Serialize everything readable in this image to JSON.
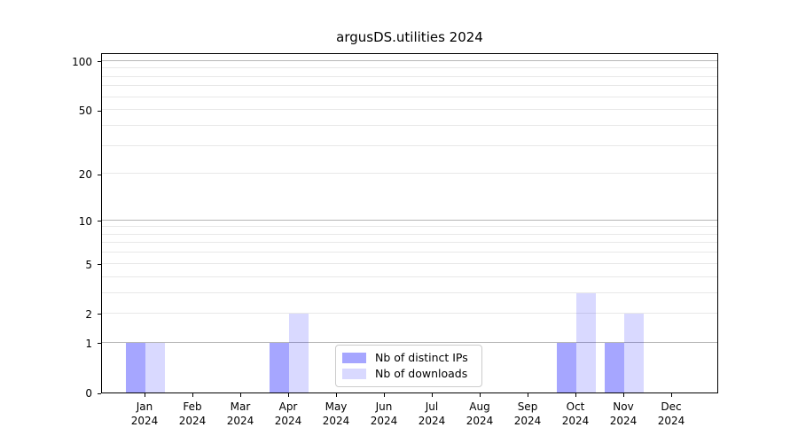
{
  "figure": {
    "background": "#ffffff",
    "text_color": "#000000",
    "spine_color": "#000000",
    "grid_major_color": "#b6b6b6",
    "grid_minor_color": "#e8e8e8",
    "legend_border_color": "#cccccc"
  },
  "chart_data": {
    "type": "bar",
    "title": "argusDS.utilities 2024",
    "xlabel": "",
    "ylabel": "",
    "categories": [
      "Jan 2024",
      "Feb 2024",
      "Mar 2024",
      "Apr 2024",
      "May 2024",
      "Jun 2024",
      "Jul 2024",
      "Aug 2024",
      "Sep 2024",
      "Oct 2024",
      "Nov 2024",
      "Dec 2024"
    ],
    "series": [
      {
        "name": "Nb of distinct IPs",
        "key": "distinct-ips",
        "fill": "rgba(0,0,255,0.35)",
        "color_hex": "#a6a6f5",
        "values": [
          1,
          0,
          0,
          1,
          0,
          0,
          0,
          0,
          0,
          1,
          1,
          0
        ]
      },
      {
        "name": "Nb of downloads",
        "key": "downloads",
        "fill": "rgba(0,0,255,0.15)",
        "color_hex": "#d9d9fa",
        "values": [
          1,
          0,
          0,
          2,
          0,
          0,
          0,
          0,
          0,
          3,
          2,
          0
        ]
      }
    ],
    "yscale": "log1p",
    "ylim": [
      0,
      113
    ],
    "yticks": [
      0,
      1,
      2,
      5,
      10,
      20,
      50,
      100
    ],
    "gridlines_major": [
      1,
      10,
      100
    ],
    "gridlines_minor": [
      2,
      3,
      4,
      5,
      6,
      7,
      8,
      9,
      20,
      30,
      40,
      50,
      60,
      70,
      80,
      90
    ],
    "grid": true,
    "legend_position": "lower center inside plot"
  }
}
